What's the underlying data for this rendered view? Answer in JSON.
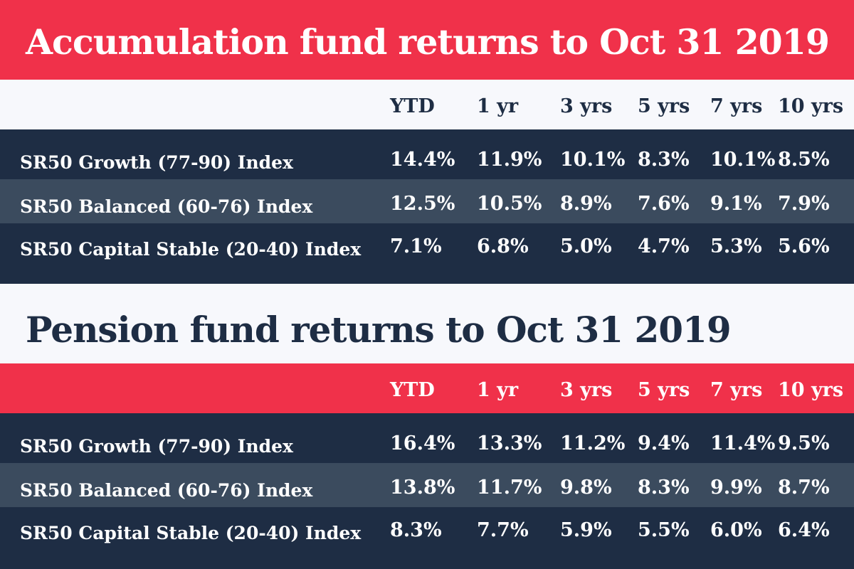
{
  "chart_data": [
    {
      "type": "table",
      "title": "Accumulation fund returns to Oct 31 2019",
      "columns": [
        "YTD",
        "1 yr",
        "3 yrs",
        "5 yrs",
        "7 yrs",
        "10 yrs"
      ],
      "rows": [
        {
          "label": "SR50 Growth (77-90) Index",
          "values": [
            "14.4%",
            "11.9%",
            "10.1%",
            "8.3%",
            "10.1%",
            "8.5%"
          ]
        },
        {
          "label": "SR50 Balanced (60-76) Index",
          "values": [
            "12.5%",
            "10.5%",
            "8.9%",
            "7.6%",
            "9.1%",
            "7.9%"
          ]
        },
        {
          "label": "SR50 Capital Stable (20-40) Index",
          "values": [
            "7.1%",
            "6.8%",
            "5.0%",
            "4.7%",
            "5.3%",
            "5.6%"
          ]
        }
      ]
    },
    {
      "type": "table",
      "title": "Pension fund returns to Oct 31 2019",
      "columns": [
        "YTD",
        "1 yr",
        "3 yrs",
        "5 yrs",
        "7 yrs",
        "10 yrs"
      ],
      "rows": [
        {
          "label": "SR50 Growth (77-90) Index",
          "values": [
            "16.4%",
            "13.3%",
            "11.2%",
            "9.4%",
            "11.4%",
            "9.5%"
          ]
        },
        {
          "label": "SR50 Balanced (60-76) Index",
          "values": [
            "13.8%",
            "11.7%",
            "9.8%",
            "8.3%",
            "9.9%",
            "8.7%"
          ]
        },
        {
          "label": "SR50 Capital Stable (20-40) Index",
          "values": [
            "8.3%",
            "7.7%",
            "5.9%",
            "5.5%",
            "6.0%",
            "6.4%"
          ]
        }
      ]
    }
  ],
  "colors": {
    "accent_red": "#f0314a",
    "navy": "#1e2d44",
    "row_alt": "#3b4b5e",
    "background": "#f7f8fc"
  }
}
